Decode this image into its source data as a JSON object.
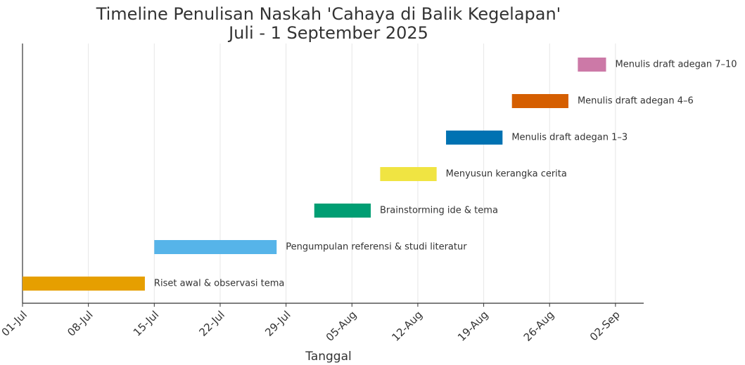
{
  "chart_data": {
    "type": "gantt",
    "title": [
      "Timeline Penulisan Naskah 'Cahaya di Balik Kegelapan'",
      "Juli - 1 September 2025"
    ],
    "xlabel": "Tanggal",
    "tasks": [
      {
        "name": "Riset awal & observasi tema",
        "start": "2025-07-01",
        "end": "2025-07-14",
        "color": "#E69F00"
      },
      {
        "name": "Pengumpulan referensi & studi literatur",
        "start": "2025-07-15",
        "end": "2025-07-28",
        "color": "#56B4E9"
      },
      {
        "name": "Brainstorming ide & tema",
        "start": "2025-08-01",
        "end": "2025-08-07",
        "color": "#009E73"
      },
      {
        "name": "Menyusun kerangka cerita",
        "start": "2025-08-08",
        "end": "2025-08-14",
        "color": "#F0E442"
      },
      {
        "name": "Menulis draft adegan 1–3",
        "start": "2025-08-15",
        "end": "2025-08-21",
        "color": "#0072B2"
      },
      {
        "name": "Menulis draft adegan 4–6",
        "start": "2025-08-22",
        "end": "2025-08-28",
        "color": "#D55E00"
      },
      {
        "name": "Menulis draft adegan 7–10",
        "start": "2025-08-29",
        "end": "2025-09-01",
        "color": "#CC79A7"
      }
    ],
    "xlim": [
      "2025-07-01",
      "2025-09-05"
    ],
    "xticks": [
      {
        "value": "2025-07-01",
        "label": "01-Jul"
      },
      {
        "value": "2025-07-08",
        "label": "08-Jul"
      },
      {
        "value": "2025-07-15",
        "label": "15-Jul"
      },
      {
        "value": "2025-07-22",
        "label": "22-Jul"
      },
      {
        "value": "2025-07-29",
        "label": "29-Jul"
      },
      {
        "value": "2025-08-05",
        "label": "05-Aug"
      },
      {
        "value": "2025-08-12",
        "label": "12-Aug"
      },
      {
        "value": "2025-08-19",
        "label": "19-Aug"
      },
      {
        "value": "2025-08-26",
        "label": "26-Aug"
      },
      {
        "value": "2025-09-02",
        "label": "02-Sep"
      }
    ],
    "grid": true
  }
}
